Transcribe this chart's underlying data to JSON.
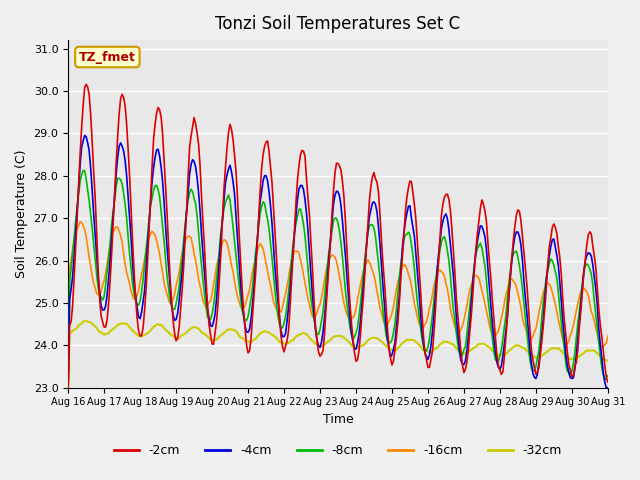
{
  "title": "Tonzi Soil Temperatures Set C",
  "xlabel": "Time",
  "ylabel": "Soil Temperature (C)",
  "ylim": [
    23.0,
    31.2
  ],
  "xlim": [
    0,
    15
  ],
  "yticks": [
    23.0,
    24.0,
    25.0,
    26.0,
    27.0,
    28.0,
    29.0,
    30.0,
    31.0
  ],
  "xtick_labels": [
    "Aug 16",
    "Aug 17",
    "Aug 18",
    "Aug 19",
    "Aug 20",
    "Aug 21",
    "Aug 22",
    "Aug 23",
    "Aug 24",
    "Aug 25",
    "Aug 26",
    "Aug 27",
    "Aug 28",
    "Aug 29",
    "Aug 30",
    "Aug 31"
  ],
  "colors": {
    "-2cm": "#dd0000",
    "-4cm": "#0000dd",
    "-8cm": "#00bb00",
    "-16cm": "#ff8800",
    "-32cm": "#cccc00"
  },
  "legend_label_box": "TZ_fmet",
  "background_color": "#e8e8e8",
  "grid_color": "#ffffff",
  "fig_facecolor": "#f0f0f0"
}
